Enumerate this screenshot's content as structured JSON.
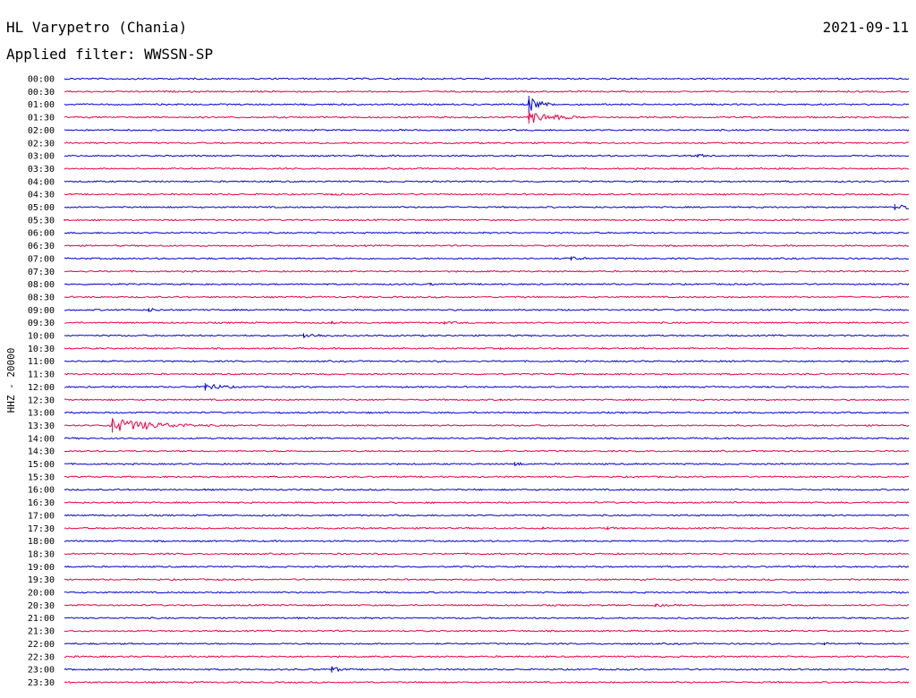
{
  "header": {
    "station": "HL Varypetro (Chania)",
    "date": "2021-09-11",
    "filter": "Applied filter: WWSSN-SP"
  },
  "chart_data": {
    "type": "line",
    "title": "HL Varypetro (Chania)",
    "subtitle": "Applied filter: WWSSN-SP",
    "date": "2021-09-11",
    "ylabel": "HHZ - 20000",
    "row_labels": [
      "00:00",
      "00:30",
      "01:00",
      "01:30",
      "02:00",
      "02:30",
      "03:00",
      "03:30",
      "04:00",
      "04:30",
      "05:00",
      "05:30",
      "06:00",
      "06:30",
      "07:00",
      "07:30",
      "08:00",
      "08:30",
      "09:00",
      "09:30",
      "10:00",
      "10:30",
      "11:00",
      "11:30",
      "12:00",
      "12:30",
      "13:00",
      "13:30",
      "14:00",
      "14:30",
      "15:00",
      "15:30",
      "16:00",
      "16:30",
      "17:00",
      "17:30",
      "18:00",
      "18:30",
      "19:00",
      "19:30",
      "20:00",
      "20:30",
      "21:00",
      "21:30",
      "22:00",
      "22:30",
      "23:00",
      "23:30"
    ],
    "row_minutes": 30,
    "colors": {
      "even_rows": "#0000cc",
      "odd_rows": "#ee0044"
    },
    "events": [
      {
        "row": "00:30",
        "minute": 8.5,
        "amplitude": 0.3,
        "duration": 2.5
      },
      {
        "row": "01:00",
        "minute": 16.5,
        "amplitude": 6.0,
        "duration": 0.8
      },
      {
        "row": "01:30",
        "minute": 16.5,
        "amplitude": 4.5,
        "duration": 1.8
      },
      {
        "row": "01:30",
        "minute": 1.0,
        "amplitude": 0.4,
        "duration": 1.2
      },
      {
        "row": "02:30",
        "minute": 7.5,
        "amplitude": 0.3,
        "duration": 1.2
      },
      {
        "row": "03:00",
        "minute": 22.5,
        "amplitude": 1.2,
        "duration": 1.5
      },
      {
        "row": "04:30",
        "minute": 9.5,
        "amplitude": 0.8,
        "duration": 2.5
      },
      {
        "row": "05:00",
        "minute": 29.5,
        "amplitude": 2.2,
        "duration": 1.2
      },
      {
        "row": "05:30",
        "minute": 0.0,
        "amplitude": 0.7,
        "duration": 1.2
      },
      {
        "row": "06:30",
        "minute": 20.0,
        "amplitude": 0.4,
        "duration": 0.3
      },
      {
        "row": "07:00",
        "minute": 18.0,
        "amplitude": 1.5,
        "duration": 1.2
      },
      {
        "row": "08:00",
        "minute": 13.0,
        "amplitude": 1.0,
        "duration": 1.0
      },
      {
        "row": "09:00",
        "minute": 3.0,
        "amplitude": 1.3,
        "duration": 1.2
      },
      {
        "row": "09:30",
        "minute": 9.5,
        "amplitude": 1.0,
        "duration": 0.8
      },
      {
        "row": "09:30",
        "minute": 13.5,
        "amplitude": 1.0,
        "duration": 2.0
      },
      {
        "row": "10:00",
        "minute": 8.5,
        "amplitude": 1.6,
        "duration": 2.2
      },
      {
        "row": "10:00",
        "minute": 22.5,
        "amplitude": 0.5,
        "duration": 0.5
      },
      {
        "row": "10:30",
        "minute": 15.5,
        "amplitude": 0.7,
        "duration": 1.0
      },
      {
        "row": "12:00",
        "minute": 5.0,
        "amplitude": 2.6,
        "duration": 1.5
      },
      {
        "row": "12:00",
        "minute": 25.0,
        "amplitude": 0.6,
        "duration": 0.6
      },
      {
        "row": "12:30",
        "minute": 15.5,
        "amplitude": 0.7,
        "duration": 1.2
      },
      {
        "row": "13:30",
        "minute": 1.7,
        "amplitude": 5.0,
        "duration": 3.2
      },
      {
        "row": "13:30",
        "minute": 13.5,
        "amplitude": 0.4,
        "duration": 0.8
      },
      {
        "row": "15:00",
        "minute": 16.0,
        "amplitude": 1.4,
        "duration": 0.8
      },
      {
        "row": "15:00",
        "minute": 25.5,
        "amplitude": 0.4,
        "duration": 1.5
      },
      {
        "row": "16:00",
        "minute": 5.0,
        "amplitude": 0.6,
        "duration": 1.5
      },
      {
        "row": "17:30",
        "minute": 17.0,
        "amplitude": 0.9,
        "duration": 1.5
      },
      {
        "row": "17:30",
        "minute": 19.3,
        "amplitude": 1.3,
        "duration": 0.8
      },
      {
        "row": "20:00",
        "minute": 24.0,
        "amplitude": 0.6,
        "duration": 0.8
      },
      {
        "row": "20:30",
        "minute": 21.0,
        "amplitude": 1.0,
        "duration": 2.0
      },
      {
        "row": "21:30",
        "minute": 25.0,
        "amplitude": 0.4,
        "duration": 0.8
      },
      {
        "row": "22:00",
        "minute": 27.0,
        "amplitude": 1.0,
        "duration": 0.6
      },
      {
        "row": "23:00",
        "minute": 9.5,
        "amplitude": 2.2,
        "duration": 0.8
      }
    ]
  }
}
